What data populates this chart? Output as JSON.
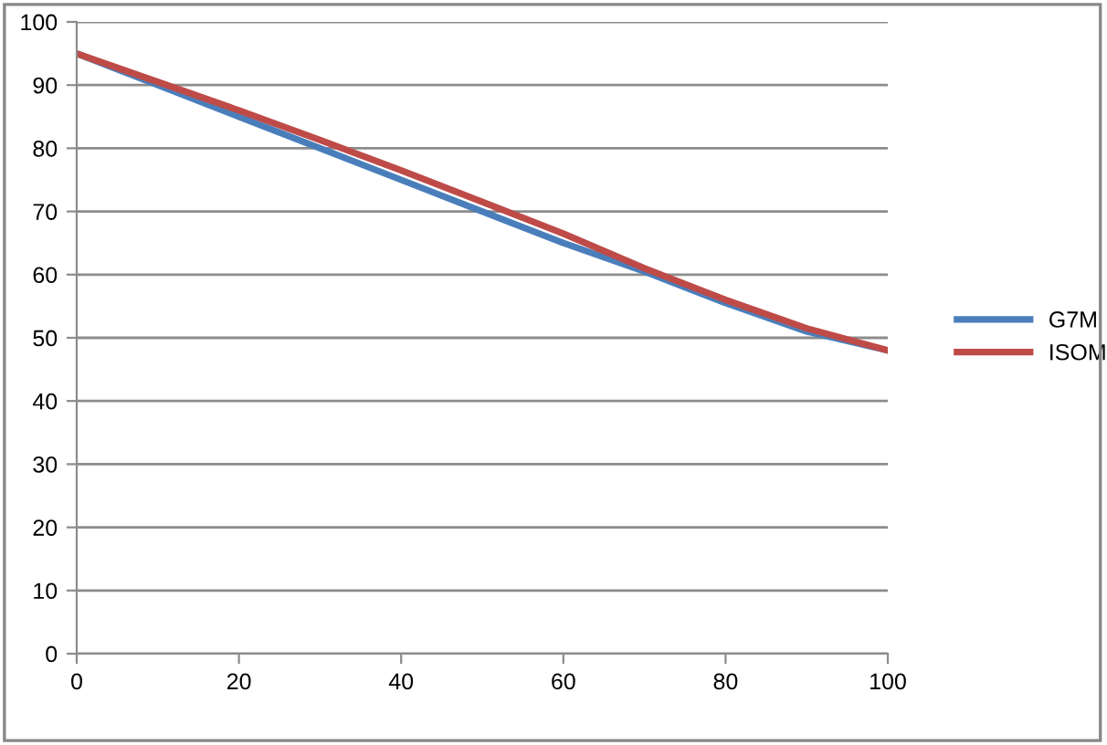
{
  "chart_data": {
    "type": "line",
    "x": [
      0,
      10,
      20,
      30,
      40,
      50,
      60,
      70,
      80,
      90,
      100
    ],
    "series": [
      {
        "name": "G7M",
        "color": "#4a7ebb",
        "values": [
          95,
          90,
          85,
          80,
          75,
          70,
          65,
          60.5,
          55.5,
          51,
          48
        ]
      },
      {
        "name": "ISOM",
        "color": "#be4b48",
        "values": [
          95,
          90.5,
          86,
          81.3,
          76.5,
          71.5,
          66.5,
          61,
          56,
          51.5,
          48
        ]
      }
    ],
    "xlim": [
      0,
      100
    ],
    "xticks": [
      0,
      20,
      40,
      60,
      80,
      100
    ],
    "ylim": [
      0,
      100
    ],
    "yticks": [
      0,
      10,
      20,
      30,
      40,
      50,
      60,
      70,
      80,
      90,
      100
    ],
    "grid": "y",
    "legend": "right",
    "marker": "none",
    "line_style": "solid"
  }
}
